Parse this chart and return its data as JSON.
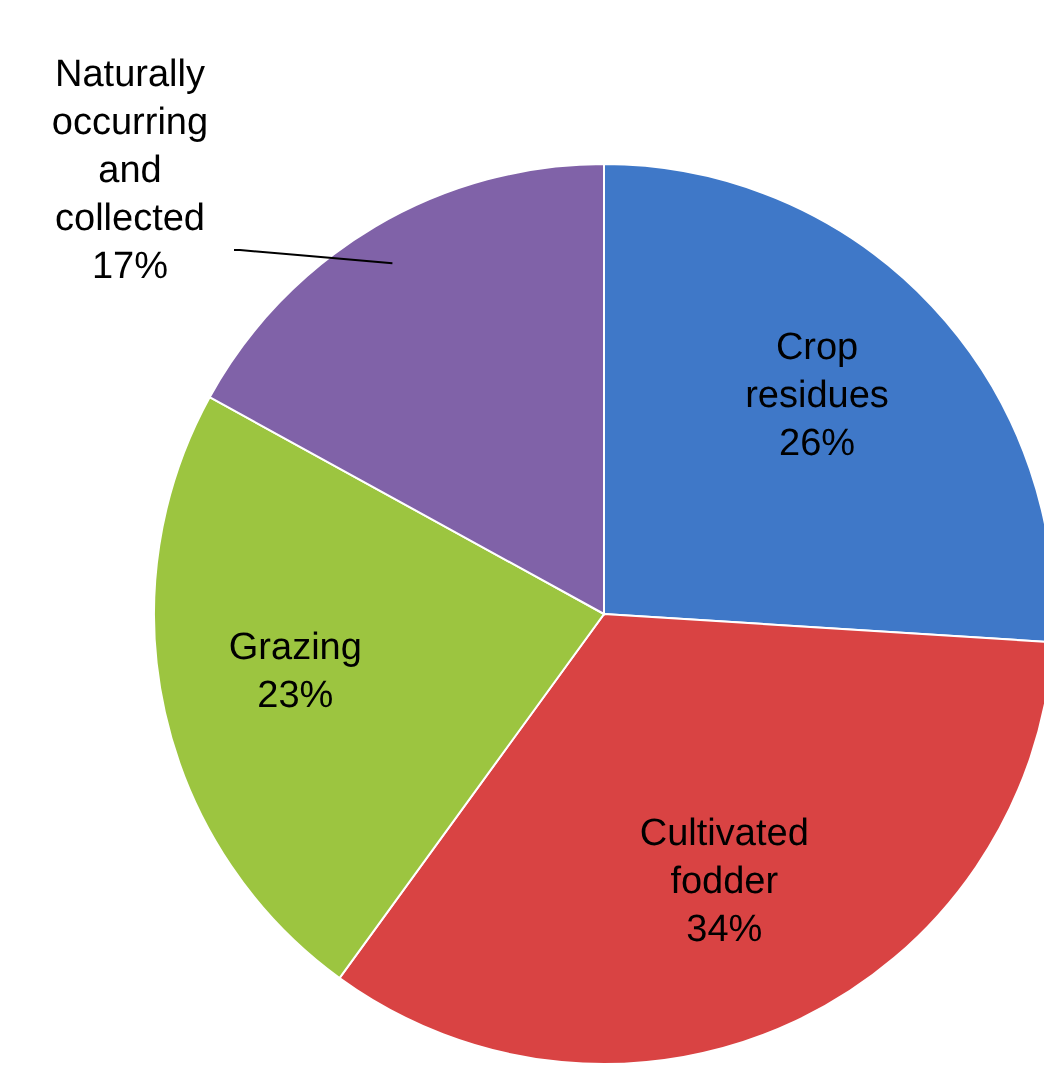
{
  "chart_data": {
    "type": "pie",
    "categories": [
      "Crop residues",
      "Cultivated fodder",
      "Grazing",
      "Naturally occurring and collected"
    ],
    "values": [
      26,
      34,
      23,
      17
    ],
    "value_labels": [
      "26%",
      "34%",
      "23%",
      "17%"
    ],
    "colors": [
      "#3f78c8",
      "#d94343",
      "#9cc540",
      "#8062a8"
    ],
    "legend": false
  }
}
